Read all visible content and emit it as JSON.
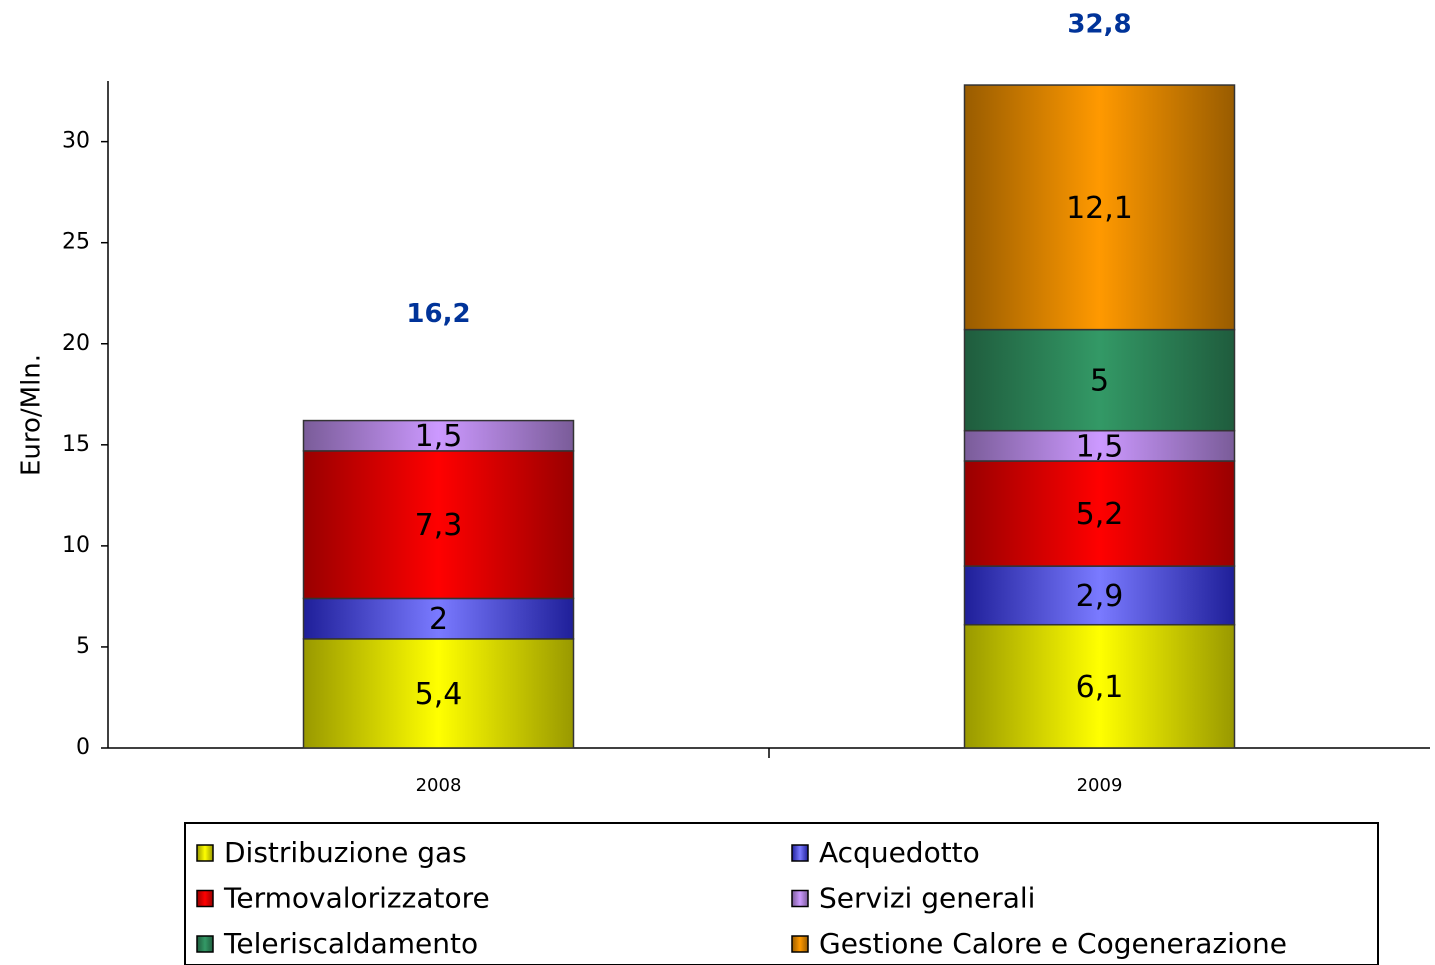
{
  "chart_data": {
    "type": "stacked_bar",
    "y_label": "Euro/Mln.",
    "categories": [
      "2008",
      "2009"
    ],
    "series": [
      {
        "name": "Distribuzione gas",
        "color": "#ffff00",
        "values": [
          5.4,
          6.1
        ],
        "value_labels": [
          "5,4",
          "6,1"
        ]
      },
      {
        "name": "Acquedotto",
        "color": "#3333ff",
        "values": [
          2,
          2.9
        ],
        "value_labels": [
          "2",
          "2,9"
        ]
      },
      {
        "name": "Termovalorizzatore",
        "color": "#ff0000",
        "values": [
          7.3,
          5.2
        ],
        "value_labels": [
          "7,3",
          "5,2"
        ]
      },
      {
        "name": "Servizi generali",
        "color": "#cc99ff",
        "values": [
          1.5,
          1.5
        ],
        "value_labels": [
          "1,5",
          "1,5"
        ]
      },
      {
        "name": "Teleriscaldamento",
        "color": "#339966",
        "values": [
          null,
          5
        ],
        "value_labels": [
          null,
          "5"
        ]
      },
      {
        "name": "Gestione Calore e Cogenerazione",
        "color": "#ff9900",
        "values": [
          null,
          12.1
        ],
        "value_labels": [
          null,
          "12,1"
        ]
      }
    ],
    "totals": [
      16.2,
      32.8
    ],
    "total_labels": [
      "16,2",
      "32,8"
    ],
    "total_color": "#003399",
    "ylim": [
      0,
      33
    ],
    "yticks": [
      0,
      5,
      10,
      15,
      20,
      25,
      30
    ],
    "grid": false
  }
}
